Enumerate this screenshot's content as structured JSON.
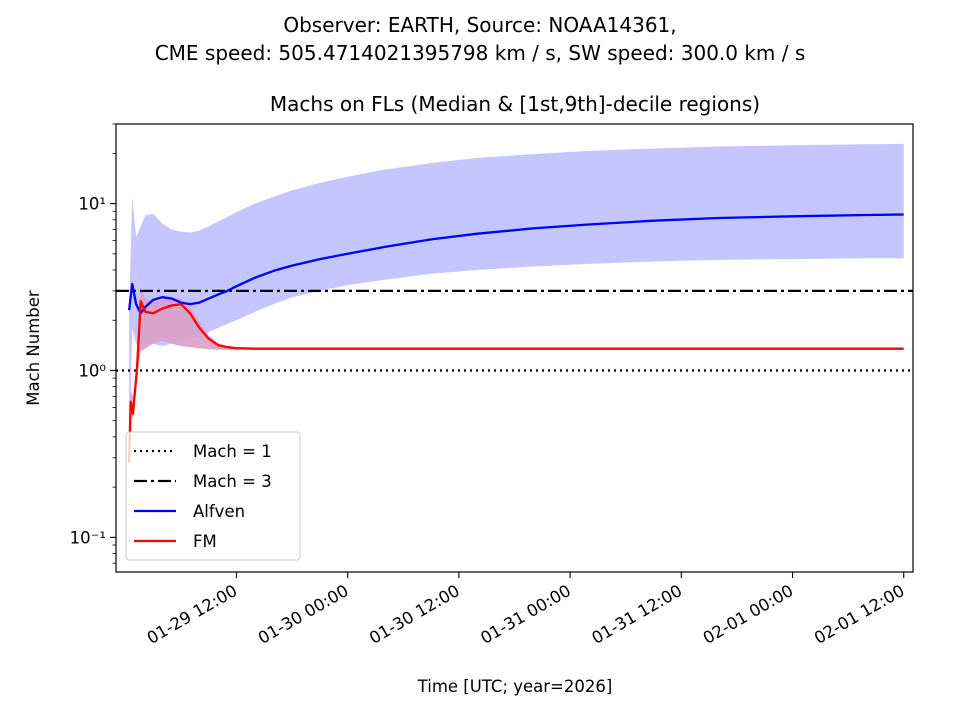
{
  "figure": {
    "suptitle_line1": "Observer: EARTH, Source: NOAA14361,",
    "suptitle_line2": "CME speed: 505.4714021395798 km / s, SW speed: 300.0 km / s"
  },
  "chart_data": {
    "type": "line",
    "title": "Machs on FLs (Median & [1st,9th]-decile regions)",
    "xlabel": "Time [UTC; year=2026]",
    "ylabel": "Mach Number",
    "yscale": "log",
    "ylim": [
      0.062,
      30
    ],
    "xlim": [
      "2026-01-28 23:00",
      "2026-02-01 13:00"
    ],
    "x_ticks": [
      "01-29 12:00",
      "01-30 00:00",
      "01-30 12:00",
      "01-31 00:00",
      "01-31 12:00",
      "02-01 00:00",
      "02-01 12:00"
    ],
    "x_tick_values": [
      "2026-01-29 12:00",
      "2026-01-30 00:00",
      "2026-01-30 12:00",
      "2026-01-31 00:00",
      "2026-01-31 12:00",
      "2026-02-01 00:00",
      "2026-02-01 12:00"
    ],
    "y_ticks": [
      0.1,
      1,
      10
    ],
    "grid": false,
    "legend_location": "lower-left",
    "reference_lines": [
      {
        "name": "Mach = 1",
        "y": 1,
        "style": "dotted",
        "color": "#000000"
      },
      {
        "name": "Mach = 3",
        "y": 3,
        "style": "dashdot",
        "color": "#000000"
      }
    ],
    "series": [
      {
        "name": "Alfven",
        "color": "#0000ff",
        "band_color": "#bfbfff",
        "x": [
          "2026-01-29 00:25",
          "2026-01-29 00:45",
          "2026-01-29 01:10",
          "2026-01-29 01:40",
          "2026-01-29 02:10",
          "2026-01-29 03:00",
          "2026-01-29 04:00",
          "2026-01-29 05:00",
          "2026-01-29 06:00",
          "2026-01-29 07:00",
          "2026-01-29 08:00",
          "2026-01-29 09:00",
          "2026-01-29 10:00",
          "2026-01-29 11:00",
          "2026-01-29 12:00",
          "2026-01-29 14:00",
          "2026-01-29 16:00",
          "2026-01-29 18:00",
          "2026-01-29 21:00",
          "2026-01-30 00:00",
          "2026-01-30 04:00",
          "2026-01-30 09:00",
          "2026-01-30 14:00",
          "2026-01-30 20:00",
          "2026-01-31 02:00",
          "2026-01-31 09:00",
          "2026-01-31 16:00",
          "2026-02-01 00:00",
          "2026-02-01 08:00",
          "2026-02-01 12:00"
        ],
        "median": [
          2.3,
          3.3,
          2.5,
          2.2,
          2.4,
          2.65,
          2.75,
          2.7,
          2.55,
          2.5,
          2.55,
          2.7,
          2.85,
          3.0,
          3.2,
          3.6,
          3.95,
          4.25,
          4.65,
          5.0,
          5.5,
          6.1,
          6.6,
          7.1,
          7.5,
          7.9,
          8.2,
          8.4,
          8.55,
          8.6
        ],
        "decile_low": [
          0.3,
          1.8,
          1.45,
          1.4,
          1.45,
          1.45,
          1.4,
          1.45,
          1.5,
          1.55,
          1.6,
          1.7,
          1.8,
          1.9,
          2.0,
          2.25,
          2.5,
          2.75,
          3.0,
          3.25,
          3.5,
          3.8,
          4.0,
          4.2,
          4.35,
          4.5,
          4.6,
          4.65,
          4.7,
          4.7
        ],
        "decile_high": [
          2.3,
          11.0,
          6.3,
          7.3,
          8.5,
          8.7,
          7.6,
          7.0,
          6.8,
          6.7,
          6.9,
          7.3,
          7.8,
          8.3,
          8.9,
          10.0,
          11.0,
          12.0,
          13.3,
          14.5,
          16.0,
          17.5,
          18.8,
          19.8,
          20.7,
          21.4,
          22.0,
          22.4,
          22.7,
          22.8
        ]
      },
      {
        "name": "FM",
        "color": "#ff0000",
        "band_color": "#d8a0c8",
        "x": [
          "2026-01-29 00:25",
          "2026-01-29 00:35",
          "2026-01-29 00:50",
          "2026-01-29 01:00",
          "2026-01-29 01:15",
          "2026-01-29 01:40",
          "2026-01-29 02:10",
          "2026-01-29 03:00",
          "2026-01-29 04:00",
          "2026-01-29 05:00",
          "2026-01-29 06:00",
          "2026-01-29 07:00",
          "2026-01-29 08:00",
          "2026-01-29 09:00",
          "2026-01-29 10:00",
          "2026-01-29 11:00",
          "2026-01-29 12:00",
          "2026-01-29 14:00",
          "2026-01-29 18:00",
          "2026-01-30 00:00",
          "2026-01-30 12:00",
          "2026-01-31 00:00",
          "2026-01-31 12:00",
          "2026-02-01 00:00",
          "2026-02-01 12:00"
        ],
        "median": [
          0.28,
          0.65,
          0.55,
          0.7,
          1.0,
          2.6,
          2.25,
          2.2,
          2.35,
          2.45,
          2.5,
          2.2,
          1.8,
          1.55,
          1.42,
          1.38,
          1.36,
          1.35,
          1.35,
          1.35,
          1.35,
          1.35,
          1.35,
          1.35,
          1.35
        ],
        "decile_low": [
          0.28,
          0.6,
          0.5,
          0.6,
          0.9,
          1.3,
          1.35,
          1.45,
          1.5,
          1.45,
          1.4,
          1.38,
          1.36,
          1.34,
          1.33,
          1.33,
          1.33,
          1.34,
          1.34,
          1.34,
          1.34,
          1.34,
          1.34,
          1.34,
          1.34
        ],
        "decile_high": [
          0.3,
          0.75,
          0.7,
          0.8,
          1.2,
          3.2,
          2.7,
          2.6,
          2.65,
          2.7,
          2.7,
          2.4,
          1.95,
          1.62,
          1.46,
          1.4,
          1.37,
          1.36,
          1.36,
          1.36,
          1.36,
          1.36,
          1.36,
          1.36,
          1.36
        ]
      }
    ]
  }
}
